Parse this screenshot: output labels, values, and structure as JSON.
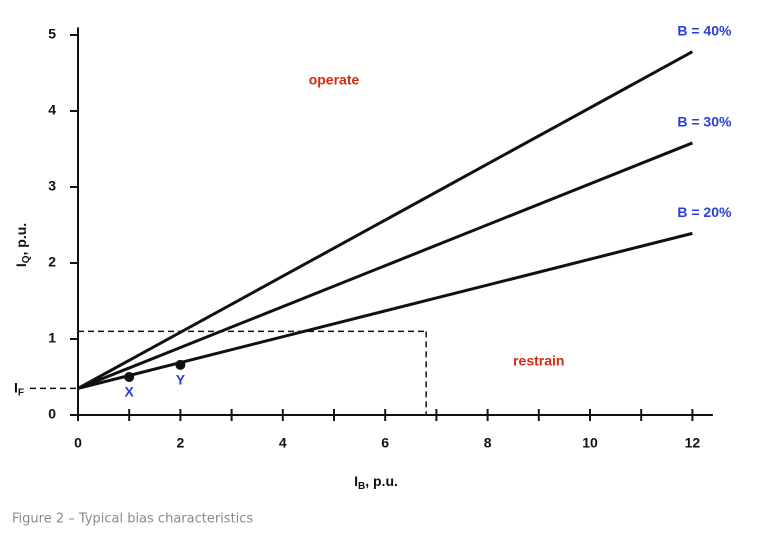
{
  "chart_data": {
    "type": "line",
    "x": [
      0,
      12
    ],
    "series": [
      {
        "name": "B = 20%",
        "color": "#111111",
        "values": [
          0.35,
          2.39
        ]
      },
      {
        "name": "B = 30%",
        "color": "#111111",
        "values": [
          0.35,
          3.58
        ]
      },
      {
        "name": "B = 40%",
        "color": "#111111",
        "values": [
          0.35,
          4.78
        ]
      }
    ],
    "series_label_color": "#2b3fd6",
    "xlim": [
      0,
      12.4
    ],
    "ylim": [
      0,
      5.1
    ],
    "xticks": [
      0,
      2,
      4,
      6,
      8,
      10,
      12
    ],
    "xminor_ticks": [
      1,
      3,
      5,
      7,
      9,
      11
    ],
    "yticks": [
      0,
      1,
      2,
      3,
      4,
      5
    ],
    "x_label": {
      "symbol": "I",
      "subscript": "B",
      "rest": ", p.u."
    },
    "y_label": {
      "symbol": "I",
      "subscript": "Q",
      "rest": ", p.u."
    },
    "threshold": {
      "value": 0.35,
      "symbol": "I",
      "subscript": "F"
    },
    "points": [
      {
        "label": "X",
        "x": 1,
        "y": 0.5
      },
      {
        "label": "Y",
        "x": 2,
        "y": 0.66
      }
    ],
    "dashed_limits": {
      "x": 6.8,
      "y": 1.1
    },
    "annotations": [
      {
        "text": "operate",
        "x": 5,
        "y": 4.4,
        "color": "#d42a10"
      },
      {
        "text": "restrain",
        "x": 9,
        "y": 0.7,
        "color": "#d42a10"
      }
    ],
    "caption": "Figure 2 – Typical bias characteristics"
  }
}
